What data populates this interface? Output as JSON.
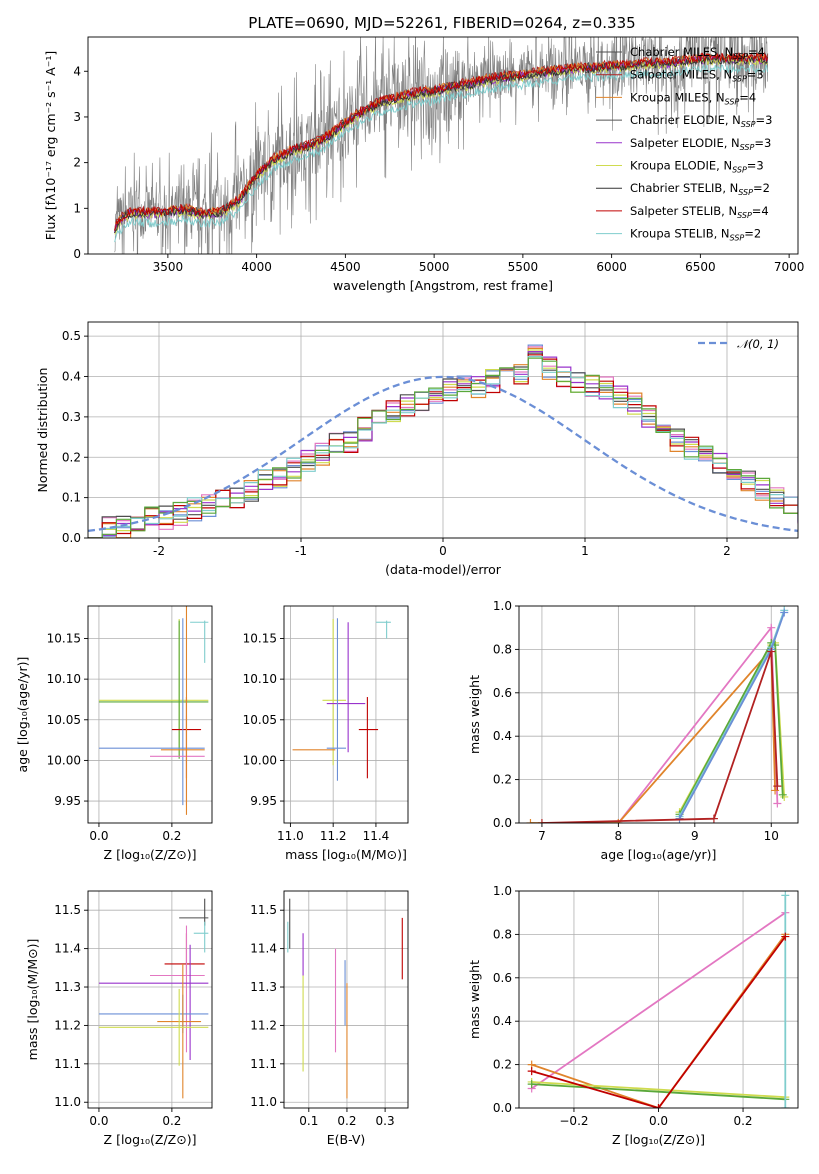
{
  "figure_title": "PLATE=0690, MJD=52261, FIBERID=0264, z=0.335",
  "colors": {
    "chabrier_miles": "#4d4d4d",
    "salpeter_miles": "#b22222",
    "kroupa_miles": "#e0842b",
    "chabrier_elodie": "#555555",
    "salpeter_elodie": "#9933cc",
    "kroupa_elodie": "#cfdb4f",
    "chabrier_stelib": "#333333",
    "salpeter_stelib": "#c00000",
    "kroupa_stelib": "#7fcdcd",
    "data_gray": "#808080",
    "blue": "#6b8fd6",
    "pink": "#e377c2",
    "green": "#5aa83a",
    "brown": "#8c564b",
    "normal_dash": "#6b8fd6"
  },
  "legend_spectrum": [
    {
      "prefix": "Chabrier MILES, N",
      "sub": "SSP",
      "suffix": "=4",
      "color": "#4d4d4d"
    },
    {
      "prefix": "Salpeter MILES, N",
      "sub": "SSP",
      "suffix": "=3",
      "color": "#b22222"
    },
    {
      "prefix": "Kroupa MILES, N",
      "sub": "SSP",
      "suffix": "=4",
      "color": "#e0842b"
    },
    {
      "prefix": "Chabrier ELODIE, N",
      "sub": "SSP",
      "suffix": "=3",
      "color": "#555555"
    },
    {
      "prefix": "Salpeter ELODIE, N",
      "sub": "SSP",
      "suffix": "=3",
      "color": "#9933cc"
    },
    {
      "prefix": "Kroupa ELODIE, N",
      "sub": "SSP",
      "suffix": "=3",
      "color": "#cfdb4f"
    },
    {
      "prefix": "Chabrier STELIB, N",
      "sub": "SSP",
      "suffix": "=2",
      "color": "#333333"
    },
    {
      "prefix": "Salpeter STELIB, N",
      "sub": "SSP",
      "suffix": "=4",
      "color": "#c00000"
    },
    {
      "prefix": "Kroupa STELIB, N",
      "sub": "SSP",
      "suffix": "=2",
      "color": "#7fcdcd"
    }
  ],
  "chart_data": [
    {
      "id": "spectrum",
      "type": "line",
      "title": "PLATE=0690, MJD=52261, FIBERID=0264, z=0.335",
      "xlabel": "wavelength [Angstrom, rest frame]",
      "ylabel": "Flux [fλ10⁻¹⁷ erg cm⁻² s⁻¹ A⁻¹]",
      "xlim": [
        3050,
        7050
      ],
      "ylim": [
        0,
        4.75
      ],
      "xticks": [
        3500,
        4000,
        4500,
        5000,
        5500,
        6000,
        6500,
        7000
      ],
      "yticks": [
        0,
        1,
        2,
        3,
        4
      ],
      "data_range": [
        3200,
        6880
      ],
      "model_continuum": {
        "x": [
          3200,
          3250,
          3300,
          3400,
          3500,
          3600,
          3700,
          3800,
          3900,
          4000,
          4100,
          4200,
          4300,
          4400,
          4500,
          4600,
          4700,
          4800,
          4900,
          5000,
          5100,
          5200,
          5300,
          5400,
          5500,
          5600,
          5700,
          5800,
          5900,
          6000,
          6100,
          6200,
          6300,
          6400,
          6500,
          6600,
          6700,
          6800,
          6880
        ],
        "y": [
          0.6,
          0.85,
          0.95,
          0.92,
          0.95,
          1.0,
          0.9,
          0.95,
          1.2,
          1.75,
          2.1,
          2.3,
          2.4,
          2.6,
          2.9,
          3.15,
          3.35,
          3.45,
          3.55,
          3.6,
          3.7,
          3.75,
          3.85,
          3.9,
          3.95,
          4.0,
          4.05,
          4.1,
          4.1,
          4.15,
          4.15,
          4.2,
          4.2,
          4.25,
          4.3,
          4.3,
          4.3,
          4.3,
          4.3
        ]
      },
      "series": [
        {
          "name": "Chabrier MILES, NSSP=4",
          "offset": 0.0
        },
        {
          "name": "Salpeter MILES, NSSP=3",
          "offset": 0.02
        },
        {
          "name": "Kroupa MILES, NSSP=4",
          "offset": 0.0
        },
        {
          "name": "Chabrier ELODIE, NSSP=3",
          "offset": -0.05
        },
        {
          "name": "Salpeter ELODIE, NSSP=3",
          "offset": -0.05
        },
        {
          "name": "Kroupa ELODIE, NSSP=3",
          "offset": -0.08
        },
        {
          "name": "Chabrier STELIB, NSSP=2",
          "offset": -0.05
        },
        {
          "name": "Salpeter STELIB, NSSP=4",
          "offset": 0.0
        },
        {
          "name": "Kroupa STELIB, NSSP=2",
          "offset": -0.25
        }
      ]
    },
    {
      "id": "residuals",
      "type": "line",
      "xlabel": "(data-model)/error",
      "ylabel": "Normed distribution",
      "xlim": [
        -2.5,
        2.5
      ],
      "ylim": [
        0,
        0.535
      ],
      "xticks": [
        -2,
        -1,
        0,
        1,
        2
      ],
      "yticks": [
        0.0,
        0.1,
        0.2,
        0.3,
        0.4,
        0.5
      ],
      "legend": "𝒩(0, 1)",
      "bin_width": 0.1,
      "histogram_base": [
        0.02,
        0.03,
        0.03,
        0.04,
        0.05,
        0.05,
        0.06,
        0.07,
        0.08,
        0.09,
        0.1,
        0.12,
        0.14,
        0.15,
        0.17,
        0.19,
        0.21,
        0.23,
        0.24,
        0.27,
        0.29,
        0.31,
        0.33,
        0.34,
        0.35,
        0.37,
        0.38,
        0.37,
        0.39,
        0.4,
        0.41,
        0.47,
        0.42,
        0.4,
        0.39,
        0.38,
        0.37,
        0.35,
        0.33,
        0.3,
        0.27,
        0.24,
        0.22,
        0.2,
        0.18,
        0.16,
        0.14,
        0.12,
        0.1,
        0.08,
        0.06
      ]
    },
    {
      "id": "age-vs-Z",
      "type": "scatter",
      "xlabel": "Z [log₁₀(Z/Z⊙)]",
      "ylabel": "age  [log₁₀(age/yr)]",
      "xlim": [
        -0.03,
        0.31
      ],
      "ylim": [
        9.923,
        10.19
      ],
      "xticks": [
        0.0,
        0.2
      ],
      "xticklabels": [
        "0.0",
        "0.2"
      ],
      "yticks": [
        9.95,
        10.0,
        10.05,
        10.1,
        10.15
      ],
      "points": [
        {
          "x": 0.29,
          "y": 10.17,
          "xerr": [
            0.04,
            0.01
          ],
          "yerr": [
            0.05,
            0.002
          ],
          "color": "#7fcdcd"
        },
        {
          "x": 0.22,
          "y": 10.074,
          "xerr": [
            0.22,
            0.08
          ],
          "yerr": [
            0.07,
            0.1
          ],
          "color": "#cfdb4f"
        },
        {
          "x": 0.22,
          "y": 10.072,
          "xerr": [
            0.22,
            0.08
          ],
          "yerr": [
            0.07,
            0.1
          ],
          "color": "#5aa83a"
        },
        {
          "x": 0.24,
          "y": 10.038,
          "xerr": [
            0.04,
            0.04
          ],
          "yerr": [
            0.06,
            0.04
          ],
          "color": "#c00000"
        },
        {
          "x": 0.23,
          "y": 10.015,
          "xerr": [
            0.23,
            0.06
          ],
          "yerr": [
            0.07,
            0.16
          ],
          "color": "#6b8fd6"
        },
        {
          "x": 0.24,
          "y": 10.005,
          "xerr": [
            0.1,
            0.05
          ],
          "yerr": [
            0.06,
            0.05
          ],
          "color": "#e377c2"
        },
        {
          "x": 0.24,
          "y": 10.013,
          "xerr": [
            0.07,
            0.05
          ],
          "yerr": [
            0.08,
            0.2
          ],
          "color": "#e0842b"
        }
      ]
    },
    {
      "id": "age-vs-mass",
      "type": "scatter",
      "xlabel": "mass [log₁₀(M/M⊙)]",
      "xlim": [
        10.97,
        11.55
      ],
      "ylim": [
        9.923,
        10.19
      ],
      "xticks": [
        11.0,
        11.2,
        11.4
      ],
      "xticklabels": [
        "11.0",
        "11.2",
        "11.4"
      ],
      "yticks": [
        9.95,
        10.0,
        10.05,
        10.1,
        10.15
      ],
      "points": [
        {
          "x": 11.45,
          "y": 10.17,
          "xerr": [
            0.05,
            0.02
          ],
          "yerr": [
            0.02,
            0.002
          ],
          "color": "#7fcdcd"
        },
        {
          "x": 11.2,
          "y": 10.074,
          "xerr": [
            0.05,
            0.06
          ],
          "yerr": [
            0.08,
            0.1
          ],
          "color": "#cfdb4f"
        },
        {
          "x": 11.27,
          "y": 10.07,
          "xerr": [
            0.1,
            0.08
          ],
          "yerr": [
            0.06,
            0.1
          ],
          "color": "#9933cc"
        },
        {
          "x": 11.36,
          "y": 10.038,
          "xerr": [
            0.04,
            0.05
          ],
          "yerr": [
            0.06,
            0.04
          ],
          "color": "#c00000"
        },
        {
          "x": 11.22,
          "y": 10.015,
          "xerr": [
            0.05,
            0.04
          ],
          "yerr": [
            0.04,
            0.16
          ],
          "color": "#6b8fd6"
        },
        {
          "x": 11.01,
          "y": 10.013,
          "xerr": [
            0.0,
            0.2
          ],
          "yerr": [
            0.0,
            0.0
          ],
          "color": "#e0842b"
        }
      ]
    },
    {
      "id": "mass-weight-vs-age",
      "type": "line",
      "xlabel": "age  [log₁₀(age/yr)]",
      "ylabel": "mass weight",
      "xlim": [
        6.7,
        10.35
      ],
      "ylim": [
        0,
        1.0
      ],
      "xticks": [
        7,
        8,
        9,
        10
      ],
      "yticks": [
        0.0,
        0.2,
        0.4,
        0.6,
        0.8,
        1.0
      ],
      "series": [
        {
          "color": "#e377c2",
          "points": [
            [
              8.0,
              0.0
            ],
            [
              10.0,
              0.9
            ],
            [
              10.08,
              0.09
            ]
          ]
        },
        {
          "color": "#e0842b",
          "points": [
            [
              6.85,
              0.0
            ],
            [
              8.0,
              0.0
            ],
            [
              10.0,
              0.8
            ],
            [
              10.05,
              0.15
            ]
          ]
        },
        {
          "color": "#cfdb4f",
          "points": [
            [
              8.8,
              0.05
            ],
            [
              10.0,
              0.82
            ],
            [
              10.05,
              0.83
            ],
            [
              10.17,
              0.12
            ]
          ]
        },
        {
          "color": "#5aa83a",
          "points": [
            [
              8.8,
              0.04
            ],
            [
              10.0,
              0.83
            ],
            [
              10.05,
              0.82
            ],
            [
              10.15,
              0.13
            ]
          ]
        },
        {
          "color": "#7fcdcd",
          "points": [
            [
              8.8,
              0.03
            ],
            [
              10.0,
              0.81
            ],
            [
              10.17,
              0.98
            ]
          ]
        },
        {
          "color": "#6b8fd6",
          "points": [
            [
              8.8,
              0.02
            ],
            [
              10.0,
              0.8
            ],
            [
              10.17,
              0.97
            ]
          ]
        },
        {
          "color": "#b22222",
          "points": [
            [
              7.0,
              0.0
            ],
            [
              9.25,
              0.02
            ],
            [
              10.0,
              0.79
            ],
            [
              10.08,
              0.17
            ]
          ]
        }
      ]
    },
    {
      "id": "mass-vs-Z",
      "type": "scatter",
      "xlabel": "Z [log₁₀(Z/Z⊙)]",
      "ylabel": "mass [log₁₀(M/M⊙)]",
      "xlim": [
        -0.03,
        0.31
      ],
      "ylim": [
        10.985,
        11.55
      ],
      "xticks": [
        0.0,
        0.2
      ],
      "xticklabels": [
        "0.0",
        "0.2"
      ],
      "yticks": [
        11.0,
        11.1,
        11.2,
        11.3,
        11.4,
        11.5
      ],
      "points": [
        {
          "x": 0.29,
          "y": 11.48,
          "xerr": [
            0.07,
            0.01
          ],
          "yerr": [
            0.02,
            0.05
          ],
          "color": "#4d4d4d"
        },
        {
          "x": 0.29,
          "y": 11.44,
          "xerr": [
            0.03,
            0.01
          ],
          "yerr": [
            0.05,
            0.03
          ],
          "color": "#7fcdcd"
        },
        {
          "x": 0.24,
          "y": 11.36,
          "xerr": [
            0.06,
            0.05
          ],
          "yerr": [
            0.03,
            0.08
          ],
          "color": "#c00000"
        },
        {
          "x": 0.24,
          "y": 11.33,
          "xerr": [
            0.1,
            0.05
          ],
          "yerr": [
            0.2,
            0.13
          ],
          "color": "#e377c2"
        },
        {
          "x": 0.25,
          "y": 11.31,
          "xerr": [
            0.25,
            0.05
          ],
          "yerr": [
            0.2,
            0.1
          ],
          "color": "#9933cc"
        },
        {
          "x": 0.23,
          "y": 11.23,
          "xerr": [
            0.23,
            0.07
          ],
          "yerr": [
            0.05,
            0.05
          ],
          "color": "#6b8fd6"
        },
        {
          "x": 0.23,
          "y": 11.21,
          "xerr": [
            0.07,
            0.05
          ],
          "yerr": [
            0.2,
            0.15
          ],
          "color": "#e0842b"
        },
        {
          "x": 0.22,
          "y": 11.195,
          "xerr": [
            0.22,
            0.08
          ],
          "yerr": [
            0.1,
            0.1
          ],
          "color": "#cfdb4f"
        }
      ]
    },
    {
      "id": "mass-vs-EBV",
      "type": "scatter",
      "xlabel": "E(B-V)",
      "xlim": [
        0.035,
        0.36
      ],
      "ylim": [
        10.985,
        11.55
      ],
      "xticks": [
        0.1,
        0.2,
        0.3
      ],
      "xticklabels": [
        "0.1",
        "0.2",
        "0.3"
      ],
      "yticks": [
        11.0,
        11.1,
        11.2,
        11.3,
        11.4,
        11.5
      ],
      "points": [
        {
          "x": 0.05,
          "y": 11.45,
          "xerr": [
            0.0,
            0.0
          ],
          "yerr": [
            0.05,
            0.08
          ],
          "color": "#4d4d4d"
        },
        {
          "x": 0.045,
          "y": 11.44,
          "xerr": [
            0.0,
            0.0
          ],
          "yerr": [
            0.05,
            0.03
          ],
          "color": "#7fcdcd"
        },
        {
          "x": 0.085,
          "y": 11.39,
          "xerr": [
            0.0,
            0.0
          ],
          "yerr": [
            0.06,
            0.05
          ],
          "color": "#9933cc"
        },
        {
          "x": 0.085,
          "y": 11.21,
          "xerr": [
            0.0,
            0.0
          ],
          "yerr": [
            0.13,
            0.12
          ],
          "color": "#cfdb4f"
        },
        {
          "x": 0.17,
          "y": 11.26,
          "xerr": [
            0.0,
            0.0
          ],
          "yerr": [
            0.13,
            0.14
          ],
          "color": "#e377c2"
        },
        {
          "x": 0.195,
          "y": 11.3,
          "xerr": [
            0.0,
            0.0
          ],
          "yerr": [
            0.1,
            0.07
          ],
          "color": "#6b8fd6"
        },
        {
          "x": 0.2,
          "y": 11.16,
          "xerr": [
            0.0,
            0.0
          ],
          "yerr": [
            0.15,
            0.15
          ],
          "color": "#e0842b"
        },
        {
          "x": 0.345,
          "y": 11.4,
          "xerr": [
            0.0,
            0.0
          ],
          "yerr": [
            0.08,
            0.08
          ],
          "color": "#c00000"
        }
      ]
    },
    {
      "id": "mass-weight-vs-Z",
      "type": "line",
      "xlabel": "Z [log₁₀(Z/Z⊙)]",
      "ylabel": "mass weight",
      "xlim": [
        -0.33,
        0.33
      ],
      "ylim": [
        0,
        1.0
      ],
      "xticks": [
        -0.2,
        0.0,
        0.2
      ],
      "xticklabels": [
        "−0.2",
        "0.0",
        "0.2"
      ],
      "yticks": [
        0.0,
        0.2,
        0.4,
        0.6,
        0.8,
        1.0
      ],
      "series": [
        {
          "color": "#e377c2",
          "points": [
            [
              -0.3,
              0.09
            ],
            [
              0.3,
              0.9
            ]
          ]
        },
        {
          "color": "#e0842b",
          "points": [
            [
              -0.3,
              0.2
            ],
            [
              0.0,
              0.0
            ],
            [
              0.3,
              0.8
            ]
          ]
        },
        {
          "color": "#cfdb4f",
          "points": [
            [
              -0.3,
              0.12
            ],
            [
              0.3,
              0.05
            ]
          ]
        },
        {
          "color": "#5aa83a",
          "points": [
            [
              -0.3,
              0.11
            ],
            [
              0.3,
              0.04
            ]
          ]
        },
        {
          "color": "#7fcdcd",
          "points": [
            [
              0.3,
              0.0
            ],
            [
              0.3,
              0.98
            ]
          ]
        },
        {
          "color": "#c00000",
          "points": [
            [
              -0.3,
              0.17
            ],
            [
              0.0,
              0.0
            ],
            [
              0.3,
              0.79
            ]
          ]
        }
      ]
    }
  ]
}
